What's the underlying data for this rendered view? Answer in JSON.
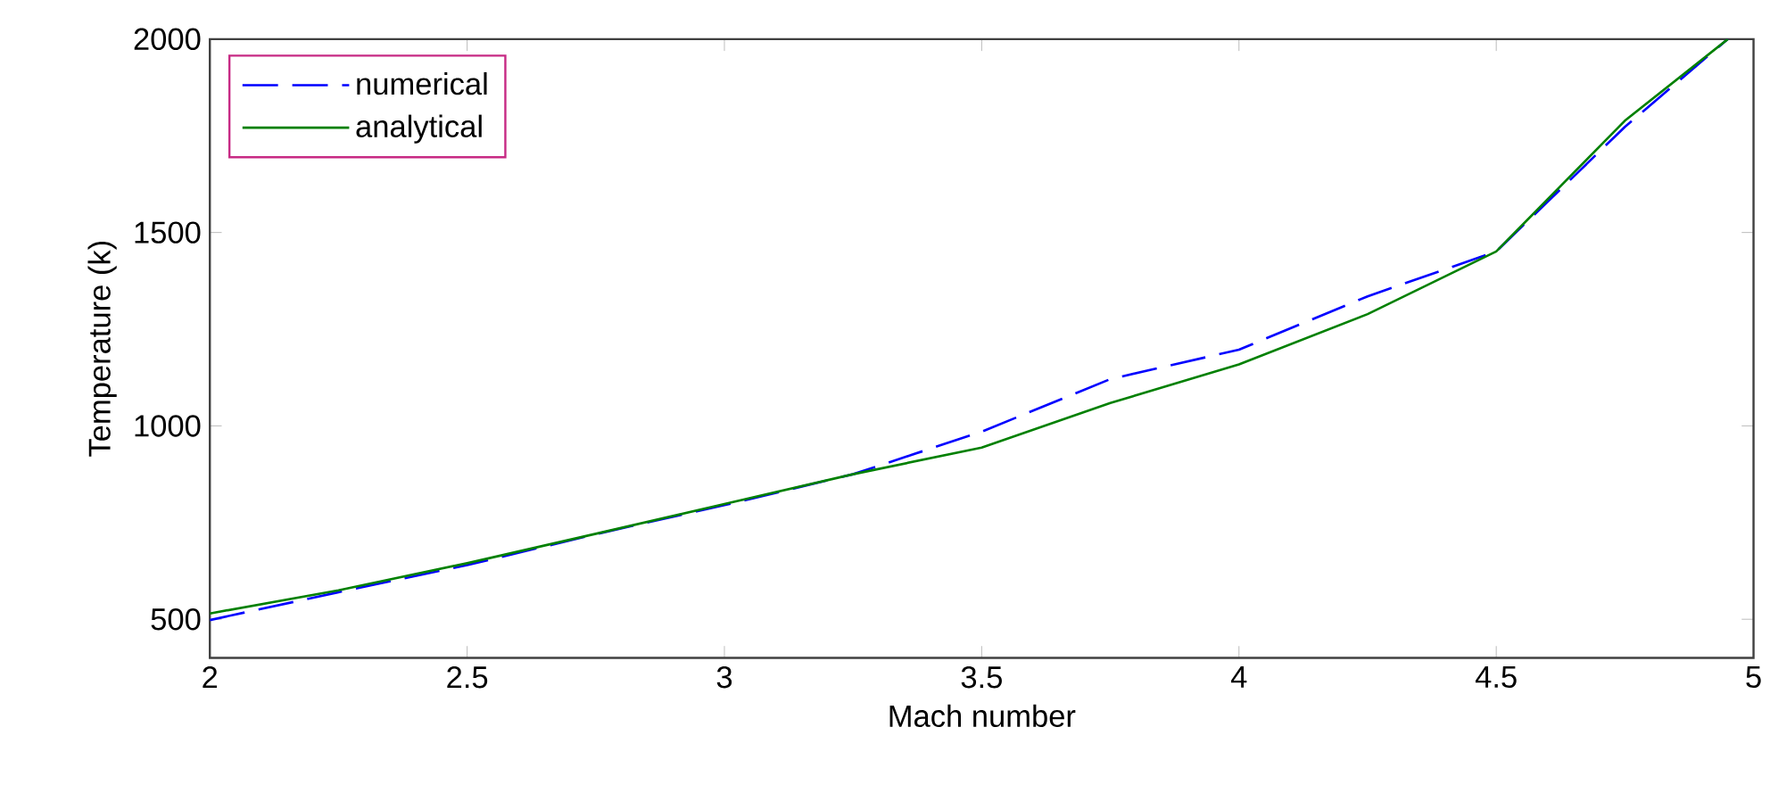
{
  "chart_data": {
    "type": "line",
    "xlabel": "Mach number",
    "ylabel": "Temperature (k)",
    "xlim": [
      2,
      5
    ],
    "ylim": [
      400,
      2000
    ],
    "xticks": [
      2,
      2.5,
      3,
      3.5,
      4,
      4.5,
      5
    ],
    "yticks": [
      500,
      1000,
      1500,
      2000
    ],
    "grid": false,
    "legend": "top left",
    "marker": "none",
    "series": [
      {
        "name": "numerical",
        "color": "#0000ff",
        "line_style": "dashed",
        "x": [
          2,
          2.25,
          2.5,
          2.75,
          3,
          3.25,
          3.5,
          3.75,
          4,
          4.25,
          4.5,
          4.75,
          4.95
        ],
        "values": [
          498,
          570,
          640,
          720,
          795,
          875,
          985,
          1121,
          1197,
          1335,
          1451,
          1773,
          2000
        ]
      },
      {
        "name": "analytical",
        "color": "#008000",
        "line_style": "solid",
        "x": [
          2,
          2.25,
          2.5,
          2.75,
          3,
          3.25,
          3.5,
          3.75,
          4,
          4.25,
          4.5,
          4.75,
          4.95
        ],
        "values": [
          515,
          575,
          645,
          721,
          798,
          875,
          944,
          1059,
          1159,
          1289,
          1451,
          1789,
          2000
        ]
      }
    ]
  }
}
